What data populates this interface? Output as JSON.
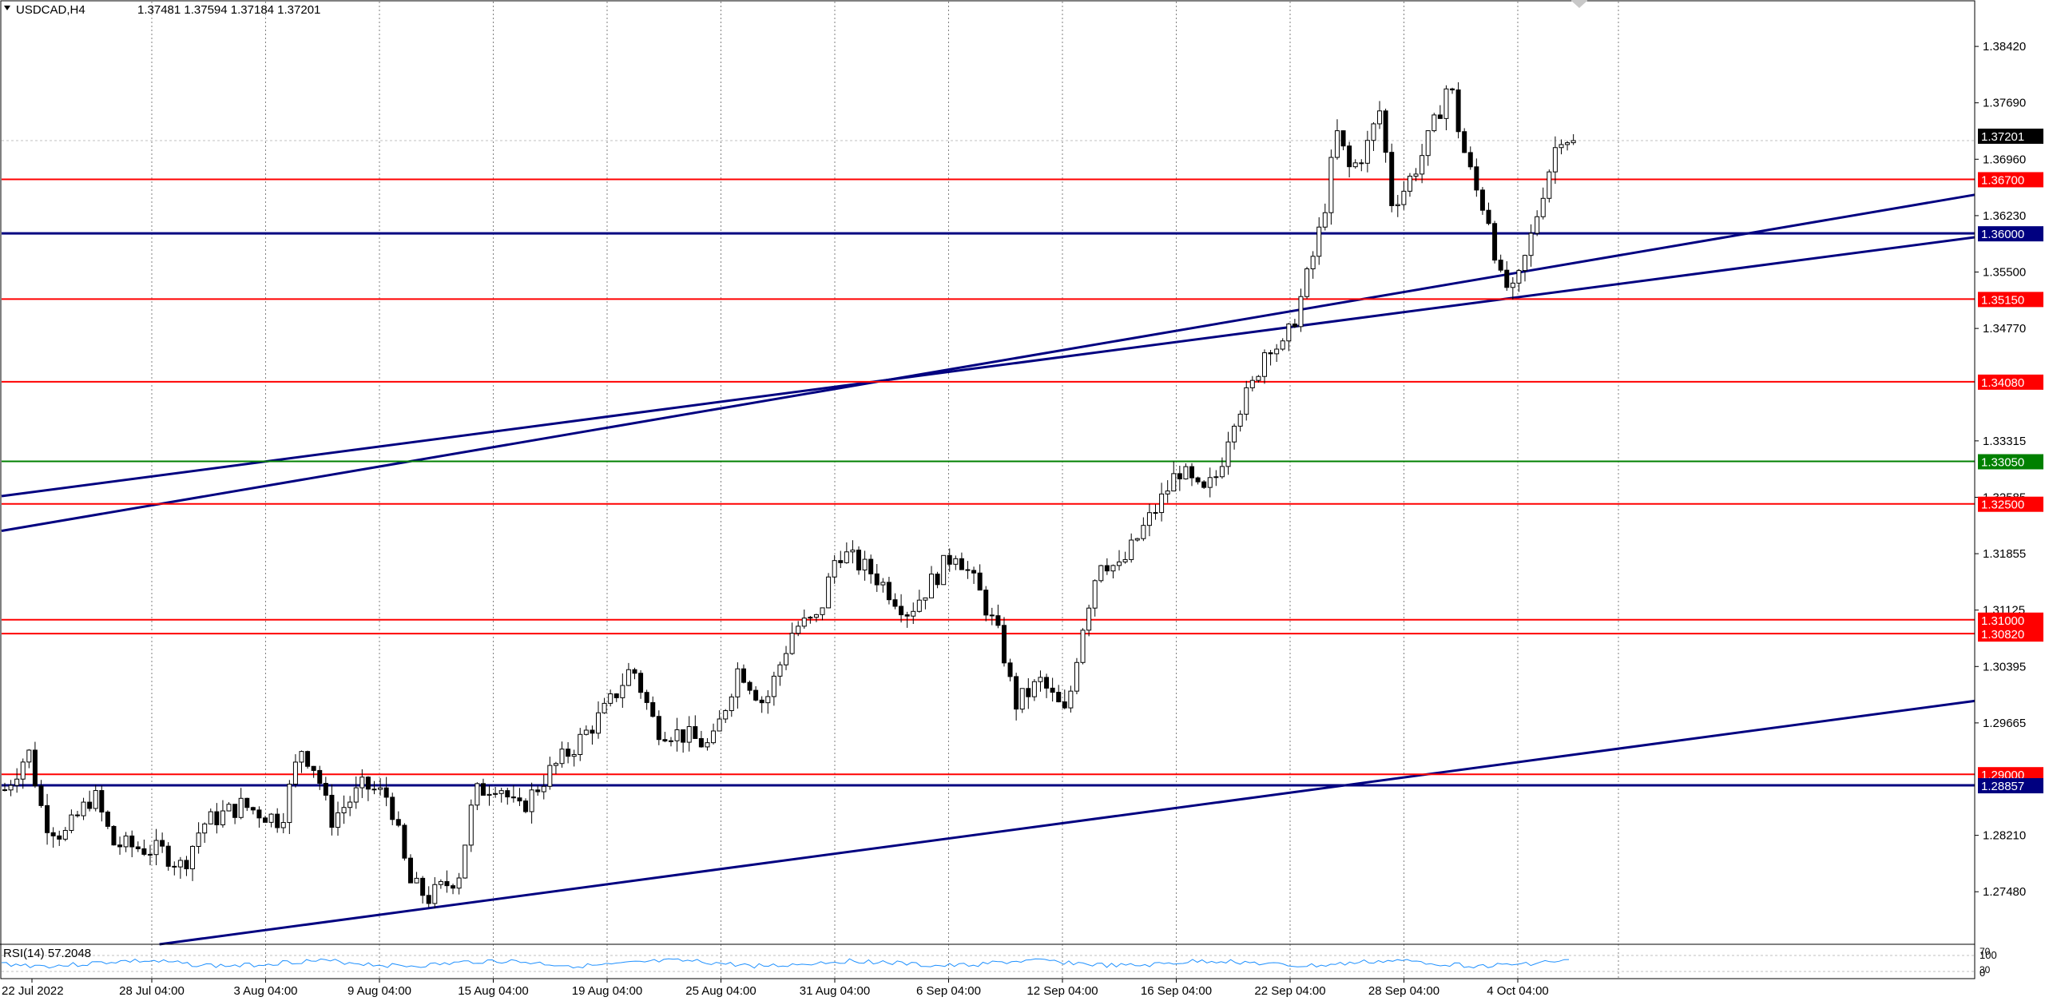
{
  "header": {
    "symbol_tf": "USDCAD,H4",
    "ohlc": "1.37481 1.37594 1.37184 1.37201",
    "menu_icon": "triangle-down-icon"
  },
  "colors": {
    "background": "#ffffff",
    "grid": "#7f7f7f",
    "candle": "#000000",
    "support_resistance": "#ff0000",
    "key_level": "#000080",
    "green_level": "#008000",
    "rsi_line": "#1e90ff",
    "current_price_bg": "#000000"
  },
  "chart_data": {
    "type": "candlestick",
    "symbol": "USDCAD",
    "timeframe": "H4",
    "price_axis": {
      "ticks": [
        "1.38420",
        "1.37690",
        "1.36960",
        "1.36230",
        "1.35500",
        "1.34770",
        "1.33315",
        "1.32585",
        "1.31855",
        "1.31125",
        "1.30395",
        "1.29665",
        "1.28210",
        "1.27480"
      ],
      "range": [
        1.268,
        1.39
      ]
    },
    "time_axis": {
      "labels": [
        "22 Jul 2022",
        "28 Jul 04:00",
        "3 Aug 04:00",
        "9 Aug 04:00",
        "15 Aug 04:00",
        "19 Aug 04:00",
        "25 Aug 04:00",
        "31 Aug 04:00",
        "6 Sep 04:00",
        "12 Sep 04:00",
        "16 Sep 04:00",
        "22 Sep 04:00",
        "28 Sep 04:00",
        "4 Oct 04:00"
      ]
    },
    "current_price": "1.37201",
    "horizontal_levels": [
      {
        "label": "1.36700",
        "value": 1.367,
        "color": "red"
      },
      {
        "label": "1.36000",
        "value": 1.36,
        "color": "navy"
      },
      {
        "label": "1.35150",
        "value": 1.3515,
        "color": "red"
      },
      {
        "label": "1.34080",
        "value": 1.3408,
        "color": "red"
      },
      {
        "label": "1.33050",
        "value": 1.3305,
        "color": "green"
      },
      {
        "label": "1.32500",
        "value": 1.325,
        "color": "red"
      },
      {
        "label": "1.31000",
        "value": 1.31,
        "color": "red"
      },
      {
        "label": "1.30820",
        "value": 1.3082,
        "color": "red"
      },
      {
        "label": "1.29000",
        "value": 1.29,
        "color": "red"
      },
      {
        "label": "1.28857",
        "value": 1.28857,
        "color": "navy"
      }
    ],
    "trendlines": [
      {
        "name": "upper-channel-line",
        "x1": 0,
        "y1": 1.3215,
        "x2": 1,
        "y2": 1.365
      },
      {
        "name": "lower-channel-line",
        "x1": 0,
        "y1": 1.326,
        "x2": 1,
        "y2": 1.3595
      },
      {
        "name": "long-support-line",
        "x1": 0.08,
        "y1": 1.268,
        "x2": 1,
        "y2": 1.2995
      }
    ],
    "anchors": [
      {
        "t": 0.0,
        "p": 1.288
      },
      {
        "t": 0.012,
        "p": 1.293
      },
      {
        "t": 0.02,
        "p": 1.284
      },
      {
        "t": 0.03,
        "p": 1.282
      },
      {
        "t": 0.045,
        "p": 1.2875
      },
      {
        "t": 0.055,
        "p": 1.281
      },
      {
        "t": 0.08,
        "p": 1.28
      },
      {
        "t": 0.09,
        "p": 1.278
      },
      {
        "t": 0.1,
        "p": 1.2835
      },
      {
        "t": 0.12,
        "p": 1.286
      },
      {
        "t": 0.14,
        "p": 1.284
      },
      {
        "t": 0.15,
        "p": 1.2935
      },
      {
        "t": 0.158,
        "p": 1.2905
      },
      {
        "t": 0.165,
        "p": 1.284
      },
      {
        "t": 0.182,
        "p": 1.2885
      },
      {
        "t": 0.195,
        "p": 1.287
      },
      {
        "t": 0.205,
        "p": 1.276
      },
      {
        "t": 0.215,
        "p": 1.274
      },
      {
        "t": 0.23,
        "p": 1.277
      },
      {
        "t": 0.238,
        "p": 1.2875
      },
      {
        "t": 0.25,
        "p": 1.289
      },
      {
        "t": 0.26,
        "p": 1.285
      },
      {
        "t": 0.275,
        "p": 1.29
      },
      {
        "t": 0.29,
        "p": 1.294
      },
      {
        "t": 0.305,
        "p": 1.2985
      },
      {
        "t": 0.318,
        "p": 1.304
      },
      {
        "t": 0.33,
        "p": 1.296
      },
      {
        "t": 0.345,
        "p": 1.295
      },
      {
        "t": 0.358,
        "p": 1.2935
      },
      {
        "t": 0.372,
        "p": 1.304
      },
      {
        "t": 0.385,
        "p": 1.299
      },
      {
        "t": 0.4,
        "p": 1.309
      },
      {
        "t": 0.412,
        "p": 1.31
      },
      {
        "t": 0.422,
        "p": 1.319
      },
      {
        "t": 0.44,
        "p": 1.316
      },
      {
        "t": 0.458,
        "p": 1.311
      },
      {
        "t": 0.47,
        "p": 1.315
      },
      {
        "t": 0.482,
        "p": 1.319
      },
      {
        "t": 0.495,
        "p": 1.313
      },
      {
        "t": 0.505,
        "p": 1.307
      },
      {
        "t": 0.512,
        "p": 1.299
      },
      {
        "t": 0.525,
        "p": 1.302
      },
      {
        "t": 0.538,
        "p": 1.2975
      },
      {
        "t": 0.545,
        "p": 1.308
      },
      {
        "t": 0.555,
        "p": 1.318
      },
      {
        "t": 0.565,
        "p": 1.3165
      },
      {
        "t": 0.575,
        "p": 1.321
      },
      {
        "t": 0.585,
        "p": 1.325
      },
      {
        "t": 0.595,
        "p": 1.3295
      },
      {
        "t": 0.607,
        "p": 1.326
      },
      {
        "t": 0.615,
        "p": 1.329
      },
      {
        "t": 0.622,
        "p": 1.336
      },
      {
        "t": 0.632,
        "p": 1.34
      },
      {
        "t": 0.64,
        "p": 1.346
      },
      {
        "t": 0.648,
        "p": 1.345
      },
      {
        "t": 0.655,
        "p": 1.35
      },
      {
        "t": 0.662,
        "p": 1.356
      },
      {
        "t": 0.668,
        "p": 1.362
      },
      {
        "t": 0.675,
        "p": 1.373
      },
      {
        "t": 0.682,
        "p": 1.368
      },
      {
        "t": 0.69,
        "p": 1.371
      },
      {
        "t": 0.697,
        "p": 1.376
      },
      {
        "t": 0.703,
        "p": 1.364
      },
      {
        "t": 0.71,
        "p": 1.366
      },
      {
        "t": 0.718,
        "p": 1.37
      },
      {
        "t": 0.726,
        "p": 1.375
      },
      {
        "t": 0.732,
        "p": 1.38
      },
      {
        "t": 0.738,
        "p": 1.372
      },
      {
        "t": 0.745,
        "p": 1.366
      },
      {
        "t": 0.752,
        "p": 1.362
      },
      {
        "t": 0.758,
        "p": 1.354
      },
      {
        "t": 0.765,
        "p": 1.352
      },
      {
        "t": 0.772,
        "p": 1.358
      },
      {
        "t": 0.78,
        "p": 1.366
      },
      {
        "t": 0.788,
        "p": 1.373
      },
      {
        "t": 0.795,
        "p": 1.372
      }
    ]
  },
  "rsi_panel": {
    "label": "RSI(14) 57.2048",
    "axis_top": "100",
    "axis_bottom": "0",
    "axis_mid": "70",
    "axis_mid2": "30"
  }
}
